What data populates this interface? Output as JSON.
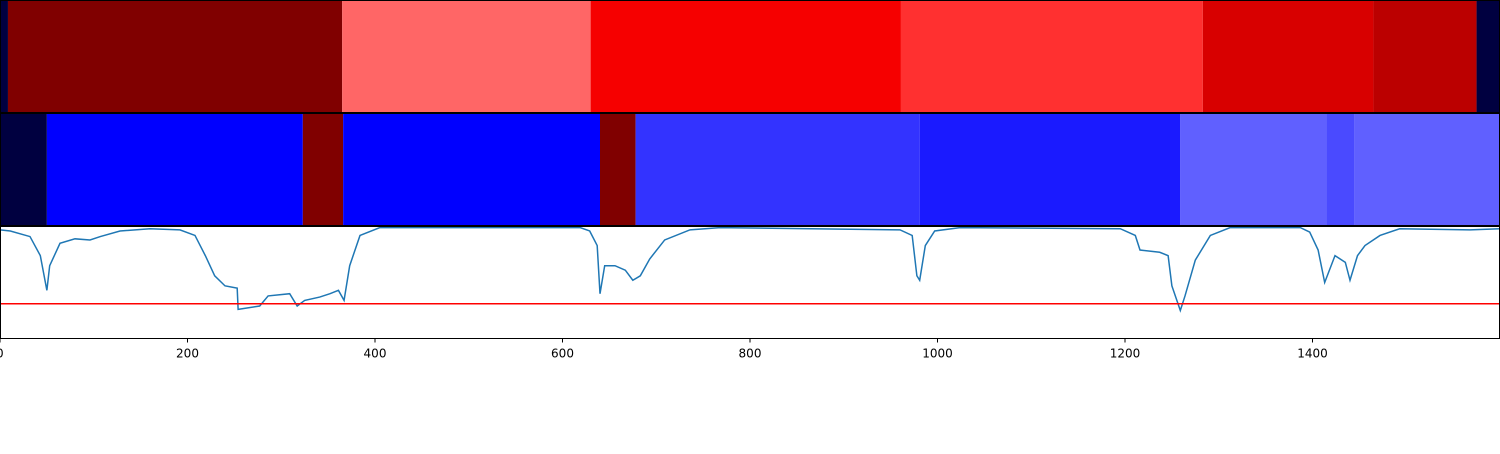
{
  "chart_data": {
    "type": "line",
    "xlim": [
      0,
      1600
    ],
    "xticks": [
      0,
      200,
      400,
      600,
      800,
      1000,
      1200,
      1400
    ],
    "ylim": [
      0,
      1
    ],
    "bands": [
      {
        "segments": [
          {
            "start": 0,
            "end": 8.5,
            "color": "#000040"
          },
          {
            "start": 8.5,
            "end": 365,
            "color": "#800000"
          },
          {
            "start": 365,
            "end": 630,
            "color": "#ff6666"
          },
          {
            "start": 630,
            "end": 961,
            "color": "#f60000"
          },
          {
            "start": 961,
            "end": 1283,
            "color": "#ff3030"
          },
          {
            "start": 1283,
            "end": 1465,
            "color": "#d80000"
          },
          {
            "start": 1465,
            "end": 1575,
            "color": "#bb0000"
          },
          {
            "start": 1575,
            "end": 1600,
            "color": "#000040"
          }
        ]
      },
      {
        "segments": [
          {
            "start": 0,
            "end": 50,
            "color": "#000040"
          },
          {
            "start": 50,
            "end": 323,
            "color": "#0000ff"
          },
          {
            "start": 323,
            "end": 366,
            "color": "#800000"
          },
          {
            "start": 366,
            "end": 640,
            "color": "#0000ff"
          },
          {
            "start": 640,
            "end": 678,
            "color": "#800000"
          },
          {
            "start": 678,
            "end": 981,
            "color": "#3333ff"
          },
          {
            "start": 981,
            "end": 1259,
            "color": "#1a1aff"
          },
          {
            "start": 1259,
            "end": 1415,
            "color": "#6060ff"
          },
          {
            "start": 1415,
            "end": 1445,
            "color": "#4a4aff"
          },
          {
            "start": 1445,
            "end": 1600,
            "color": "#6060ff"
          }
        ]
      }
    ],
    "x": [
      0,
      11,
      32,
      43,
      50,
      53,
      64,
      80,
      96,
      107,
      128,
      160,
      192,
      208,
      219,
      229,
      240,
      253,
      254,
      277,
      286,
      309,
      317,
      325,
      341,
      352,
      361,
      367,
      373,
      384,
      405,
      619,
      629,
      637,
      640,
      645,
      656,
      667,
      675,
      683,
      693,
      709,
      736,
      768,
      960,
      973,
      978,
      981,
      987,
      997,
      1024,
      1195,
      1211,
      1216,
      1237,
      1246,
      1250,
      1259,
      1264,
      1275,
      1291,
      1312,
      1387,
      1397,
      1406,
      1413,
      1424,
      1435,
      1440,
      1448,
      1456,
      1472,
      1493,
      1568,
      1600
    ],
    "values": [
      0.97,
      0.96,
      0.91,
      0.74,
      0.43,
      0.65,
      0.85,
      0.89,
      0.88,
      0.91,
      0.96,
      0.98,
      0.97,
      0.92,
      0.74,
      0.56,
      0.47,
      0.45,
      0.26,
      0.29,
      0.38,
      0.4,
      0.29,
      0.34,
      0.37,
      0.4,
      0.43,
      0.34,
      0.65,
      0.92,
      0.99,
      0.99,
      0.96,
      0.83,
      0.4,
      0.65,
      0.65,
      0.61,
      0.52,
      0.56,
      0.71,
      0.88,
      0.97,
      0.99,
      0.97,
      0.92,
      0.56,
      0.52,
      0.83,
      0.96,
      0.99,
      0.98,
      0.92,
      0.79,
      0.77,
      0.74,
      0.47,
      0.25,
      0.38,
      0.7,
      0.92,
      0.99,
      0.99,
      0.95,
      0.79,
      0.5,
      0.74,
      0.68,
      0.52,
      0.74,
      0.83,
      0.92,
      0.98,
      0.97,
      0.98
    ],
    "color": "#1f77b4",
    "threshold": {
      "value": 0.31,
      "color": "#ff0000"
    }
  }
}
